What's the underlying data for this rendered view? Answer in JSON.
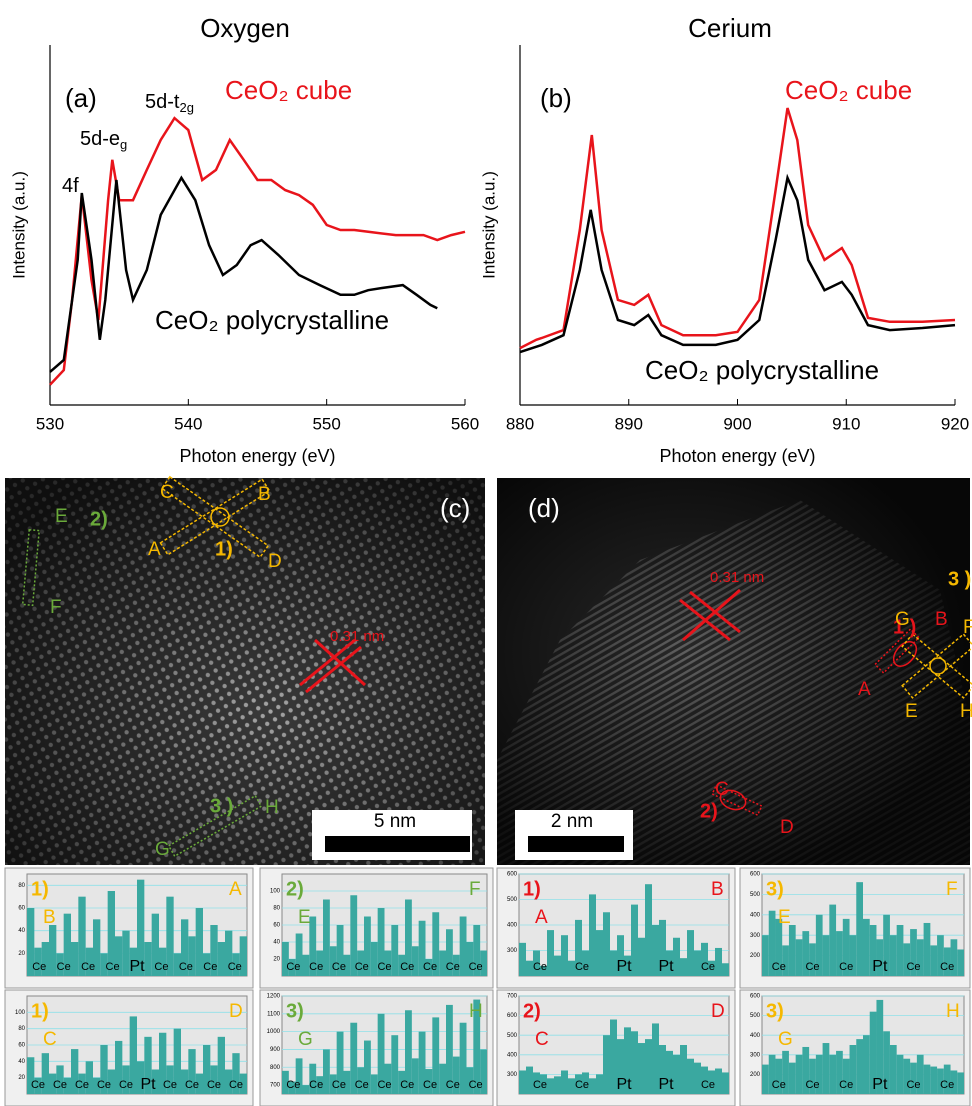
{
  "chart_data": [
    {
      "type": "line",
      "title": "Oxygen",
      "panel": "(a)",
      "xlabel": "Photon energy (eV)",
      "ylabel": "Intensity (a.u.)",
      "xlim": [
        530,
        560
      ],
      "xticks": [
        530,
        540,
        550,
        560
      ],
      "ylim": [
        0,
        1
      ],
      "annotations": [
        {
          "text": "4f"
        },
        {
          "text": "5d-e",
          "sub": "g"
        },
        {
          "text": "5d-t",
          "sub": "2g"
        }
      ],
      "series": [
        {
          "name": "CeO₂ cube",
          "color": "#e8141b",
          "x": [
            530,
            531,
            531.6,
            532.3,
            533,
            533.5,
            534.2,
            534.5,
            535,
            536,
            537,
            538,
            539,
            540,
            541,
            542,
            543,
            544,
            545,
            546,
            547,
            548,
            549,
            550,
            551,
            552,
            553,
            555,
            557,
            558,
            559,
            560
          ],
          "values": [
            0.056,
            0.097,
            0.292,
            0.583,
            0.347,
            0.236,
            0.569,
            0.681,
            0.569,
            0.569,
            0.653,
            0.736,
            0.797,
            0.764,
            0.625,
            0.653,
            0.736,
            0.681,
            0.625,
            0.625,
            0.597,
            0.583,
            0.556,
            0.5,
            0.486,
            0.486,
            0.481,
            0.472,
            0.472,
            0.458,
            0.472,
            0.481
          ]
        },
        {
          "name": "CeO₂ polycrystalline",
          "color": "#000000",
          "x": [
            530,
            531,
            532,
            532.3,
            533,
            533.6,
            534,
            534.8,
            535.5,
            536,
            537,
            538,
            539.5,
            540.5,
            541.5,
            542.5,
            543.5,
            544.5,
            545.3,
            546.5,
            548,
            549.5,
            551,
            552,
            553,
            554,
            555.5,
            556.5,
            557.5,
            558
          ],
          "values": [
            0.092,
            0.125,
            0.403,
            0.589,
            0.403,
            0.181,
            0.292,
            0.625,
            0.375,
            0.292,
            0.375,
            0.528,
            0.631,
            0.569,
            0.444,
            0.361,
            0.389,
            0.444,
            0.458,
            0.417,
            0.361,
            0.333,
            0.306,
            0.306,
            0.319,
            0.325,
            0.333,
            0.306,
            0.278,
            0.269
          ]
        }
      ]
    },
    {
      "type": "line",
      "title": "Cerium",
      "panel": "(b)",
      "xlabel": "Photon energy (eV)",
      "ylabel": "Intensity (a.u.)",
      "xlim": [
        880,
        920
      ],
      "xticks": [
        880,
        890,
        900,
        910,
        920
      ],
      "ylim": [
        0,
        1
      ],
      "annotations": [],
      "series": [
        {
          "name": "CeO₂ cube",
          "color": "#e8141b",
          "x": [
            880,
            881.5,
            882,
            884,
            885.5,
            886.6,
            887.5,
            889,
            890.5,
            891.8,
            893,
            895,
            898,
            900,
            902,
            903.5,
            904.6,
            905.5,
            906.5,
            908,
            909.6,
            910.5,
            912,
            914,
            917,
            920
          ],
          "values": [
            0.158,
            0.181,
            0.186,
            0.208,
            0.486,
            0.75,
            0.486,
            0.292,
            0.278,
            0.306,
            0.222,
            0.194,
            0.194,
            0.203,
            0.292,
            0.597,
            0.825,
            0.736,
            0.5,
            0.403,
            0.436,
            0.389,
            0.242,
            0.231,
            0.231,
            0.236
          ]
        },
        {
          "name": "CeO₂ polycrystalline",
          "color": "#000000",
          "x": [
            880,
            882,
            884,
            885.5,
            886.5,
            887.5,
            889,
            890.5,
            891.8,
            893,
            895,
            898,
            900,
            902,
            903.5,
            904.6,
            905.5,
            906.5,
            908,
            909.6,
            910.5,
            912,
            914,
            917,
            920
          ],
          "values": [
            0.147,
            0.167,
            0.194,
            0.375,
            0.542,
            0.375,
            0.236,
            0.222,
            0.25,
            0.194,
            0.167,
            0.167,
            0.181,
            0.236,
            0.458,
            0.631,
            0.569,
            0.403,
            0.319,
            0.342,
            0.306,
            0.222,
            0.208,
            0.214,
            0.222
          ]
        }
      ]
    },
    {
      "type": "bar",
      "label": "1)",
      "left": "B",
      "right": "A",
      "label_color": "#f5b800",
      "color": "#3aa8a0",
      "ylim": [
        0,
        90
      ],
      "yticks": [
        20,
        40,
        60,
        80
      ],
      "values": [
        60,
        25,
        30,
        45,
        20,
        55,
        30,
        70,
        25,
        50,
        20,
        75,
        35,
        40,
        25,
        85,
        30,
        55,
        25,
        70,
        20,
        50,
        35,
        60,
        20,
        45,
        30,
        40,
        20,
        35
      ],
      "atoms": [
        "Ce",
        "Ce",
        "Ce",
        "Ce",
        "Pt",
        "Ce",
        "Ce",
        "Ce",
        "Ce"
      ]
    },
    {
      "type": "bar",
      "label": "2)",
      "left": "E",
      "right": "F",
      "label_color": "#6aaa3a",
      "color": "#3aa8a0",
      "ylim": [
        0,
        120
      ],
      "yticks": [
        20,
        40,
        60,
        80,
        100
      ],
      "values": [
        40,
        20,
        50,
        25,
        70,
        30,
        90,
        35,
        60,
        25,
        95,
        30,
        70,
        40,
        80,
        30,
        60,
        25,
        90,
        35,
        65,
        20,
        75,
        30,
        55,
        25,
        70,
        40,
        60,
        30
      ],
      "atoms": [
        "Ce",
        "Ce",
        "Ce",
        "Ce",
        "Ce",
        "Ce",
        "Ce",
        "Ce",
        "Ce"
      ]
    },
    {
      "type": "bar",
      "label": "1)",
      "left": "C",
      "right": "D",
      "label_color": "#f5b800",
      "color": "#3aa8a0",
      "ylim": [
        0,
        120
      ],
      "yticks": [
        20,
        40,
        60,
        80,
        100
      ],
      "values": [
        45,
        20,
        50,
        25,
        35,
        20,
        55,
        25,
        40,
        20,
        60,
        30,
        65,
        35,
        95,
        40,
        70,
        30,
        75,
        35,
        80,
        30,
        55,
        25,
        60,
        35,
        70,
        30,
        50,
        25
      ],
      "atoms": [
        "Ce",
        "Ce",
        "Ce",
        "Ce",
        "Ce",
        "Pt",
        "Ce",
        "Ce",
        "Ce",
        "Ce"
      ]
    },
    {
      "type": "bar",
      "label": "3)",
      "left": "G",
      "right": "H",
      "label_color": "#6aaa3a",
      "color": "#3aa8a0",
      "ylim": [
        650,
        1200
      ],
      "yticks": [
        700,
        800,
        900,
        1000,
        1100,
        1200
      ],
      "values": [
        780,
        720,
        850,
        700,
        820,
        750,
        900,
        760,
        1000,
        780,
        1050,
        800,
        950,
        760,
        1100,
        820,
        980,
        780,
        1120,
        850,
        1000,
        790,
        1080,
        820,
        1150,
        860,
        1050,
        800,
        1180,
        900
      ],
      "atoms": [
        "Ce",
        "Ce",
        "Ce",
        "Ce",
        "Ce",
        "Ce",
        "Ce",
        "Ce",
        "Ce"
      ]
    },
    {
      "type": "bar",
      "label": "1)",
      "left": "A",
      "right": "B",
      "label_color": "#e8141b",
      "color": "#3aa8a0",
      "ylim": [
        200,
        600
      ],
      "yticks": [
        300,
        400,
        500,
        600
      ],
      "values": [
        330,
        260,
        300,
        240,
        380,
        280,
        360,
        260,
        420,
        300,
        520,
        380,
        450,
        300,
        360,
        280,
        480,
        350,
        560,
        400,
        420,
        300,
        350,
        270,
        380,
        300,
        330,
        260,
        310,
        250
      ],
      "atoms": [
        "Ce",
        "Ce",
        "Pt",
        "Pt",
        "Ce"
      ]
    },
    {
      "type": "bar",
      "label": "3)",
      "left": "E",
      "right": "F",
      "label_color": "#f5b800",
      "color": "#3aa8a0",
      "ylim": [
        100,
        600
      ],
      "yticks": [
        200,
        300,
        400,
        500,
        600
      ],
      "values": [
        300,
        420,
        380,
        250,
        350,
        280,
        320,
        260,
        400,
        300,
        450,
        320,
        380,
        300,
        560,
        380,
        350,
        280,
        400,
        300,
        350,
        260,
        330,
        280,
        360,
        250,
        300,
        240,
        280,
        230
      ],
      "atoms": [
        "Ce",
        "Ce",
        "Ce",
        "Pt",
        "Ce",
        "Ce"
      ]
    },
    {
      "type": "bar",
      "label": "2)",
      "left": "C",
      "right": "D",
      "label_color": "#e8141b",
      "color": "#3aa8a0",
      "ylim": [
        200,
        700
      ],
      "yticks": [
        300,
        400,
        500,
        600,
        700
      ],
      "values": [
        320,
        340,
        310,
        300,
        280,
        290,
        320,
        280,
        300,
        310,
        280,
        300,
        500,
        580,
        480,
        540,
        520,
        460,
        480,
        560,
        450,
        420,
        400,
        450,
        380,
        360,
        340,
        320,
        330,
        310
      ],
      "atoms": [
        "Ce",
        "Ce",
        "Pt",
        "Pt",
        "Ce"
      ]
    },
    {
      "type": "bar",
      "label": "3)",
      "left": "G",
      "right": "H",
      "label_color": "#f5b800",
      "color": "#3aa8a0",
      "ylim": [
        100,
        600
      ],
      "yticks": [
        200,
        300,
        400,
        500,
        600
      ],
      "values": [
        250,
        300,
        280,
        320,
        260,
        300,
        340,
        280,
        300,
        360,
        300,
        320,
        280,
        350,
        380,
        400,
        520,
        580,
        420,
        350,
        300,
        280,
        260,
        300,
        250,
        240,
        230,
        250,
        220,
        210
      ],
      "atoms": [
        "Ce",
        "Ce",
        "Ce",
        "Pt",
        "Ce",
        "Ce"
      ]
    }
  ],
  "images": [
    {
      "panel": "(c)",
      "scale": "5 nm",
      "labels": [
        {
          "text": "C",
          "color": "#f5b800"
        },
        {
          "text": "B",
          "color": "#f5b800"
        },
        {
          "text": "A",
          "color": "#f5b800"
        },
        {
          "text": "D",
          "color": "#f5b800"
        },
        {
          "text": "1)",
          "color": "#f5b800"
        },
        {
          "text": "E",
          "color": "#6aaa3a"
        },
        {
          "text": "2)",
          "color": "#6aaa3a"
        },
        {
          "text": "F",
          "color": "#6aaa3a"
        },
        {
          "text": "0.31 nm",
          "color": "#e8141b"
        },
        {
          "text": "3 )",
          "color": "#6aaa3a"
        },
        {
          "text": "H",
          "color": "#6aaa3a"
        },
        {
          "text": "G",
          "color": "#6aaa3a"
        }
      ]
    },
    {
      "panel": "(d)",
      "scale": "2 nm",
      "labels": [
        {
          "text": "0.31 nm",
          "color": "#e8141b"
        },
        {
          "text": "3 )",
          "color": "#f5b800"
        },
        {
          "text": "1 )",
          "color": "#e8141b"
        },
        {
          "text": "G",
          "color": "#f5b800"
        },
        {
          "text": "B",
          "color": "#e8141b"
        },
        {
          "text": "F",
          "color": "#f5b800"
        },
        {
          "text": "A",
          "color": "#e8141b"
        },
        {
          "text": "E",
          "color": "#f5b800"
        },
        {
          "text": "H",
          "color": "#f5b800"
        },
        {
          "text": "C",
          "color": "#e8141b"
        },
        {
          "text": "2)",
          "color": "#e8141b"
        },
        {
          "text": "D",
          "color": "#e8141b"
        }
      ]
    }
  ]
}
